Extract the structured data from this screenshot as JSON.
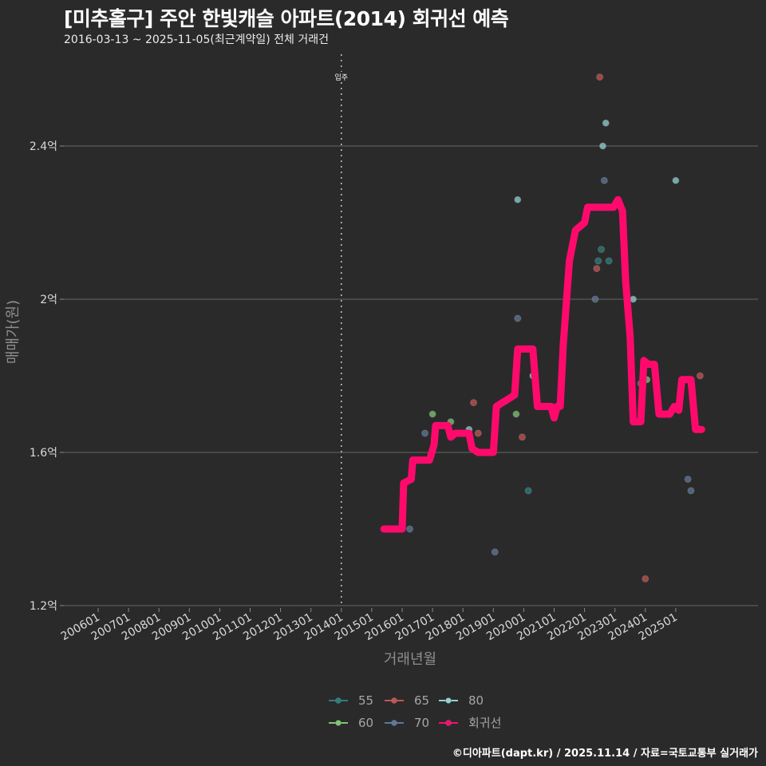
{
  "header": {
    "title": "[미추홀구] 주안 한빛캐슬 아파트(2014) 회귀선 예측",
    "subtitle": "2016-03-13 ~ 2025-11-05(최근계약일) 전체 거래건"
  },
  "footer": {
    "credit": "©디아파트(dapt.kr) / 2025.11.14 / 자료=국토교통부 실거래가"
  },
  "annotation": {
    "label": "입주",
    "x": "201401"
  },
  "colors": {
    "background": "#2a2a2b",
    "grid": "#5a5a5a",
    "s55": "#2a7f7f",
    "s60": "#7ec86f",
    "s65": "#c9534f",
    "s70": "#5e7899",
    "s80": "#8fd3d3",
    "regression": "#ff0a6c"
  },
  "chart_data": {
    "type": "scatter+line",
    "title": "[미추홀구] 주안 한빛캐슬 아파트(2014) 회귀선 예측",
    "subtitle": "2016-03-13 ~ 2025-11-05(최근계약일) 전체 거래건",
    "xlabel": "거래년월",
    "ylabel": "매매가(원)",
    "x_ticks": [
      "200601",
      "200701",
      "200801",
      "200901",
      "201001",
      "201101",
      "201201",
      "201301",
      "201401",
      "201501",
      "201601",
      "201701",
      "201801",
      "201901",
      "202001",
      "202101",
      "202201",
      "202301",
      "202401",
      "202501"
    ],
    "y_ticks": [
      "1.2억",
      "1.6억",
      "2억",
      "2.4억"
    ],
    "ylim": [
      1.2,
      2.6
    ],
    "grid": true,
    "legend_position": "bottom",
    "legend": [
      "55",
      "60",
      "65",
      "70",
      "80",
      "회귀선"
    ],
    "series": [
      {
        "name": "55",
        "points": [
          [
            2020.15,
            1.5
          ],
          [
            2022.55,
            2.13
          ],
          [
            2022.45,
            2.1
          ],
          [
            2022.8,
            2.1
          ]
        ]
      },
      {
        "name": "60",
        "points": [
          [
            2017.0,
            1.7
          ],
          [
            2017.6,
            1.68
          ],
          [
            2019.75,
            1.7
          ],
          [
            2024.05,
            1.79
          ]
        ]
      },
      {
        "name": "65",
        "points": [
          [
            2018.35,
            1.73
          ],
          [
            2018.5,
            1.65
          ],
          [
            2019.95,
            1.64
          ],
          [
            2022.4,
            2.08
          ],
          [
            2022.5,
            2.58
          ],
          [
            2024.0,
            1.27
          ],
          [
            2025.8,
            1.8
          ]
        ]
      },
      {
        "name": "70",
        "points": [
          [
            2016.25,
            1.4
          ],
          [
            2016.75,
            1.65
          ],
          [
            2019.05,
            1.34
          ],
          [
            2019.8,
            1.95
          ],
          [
            2022.35,
            2.0
          ],
          [
            2022.65,
            2.31
          ],
          [
            2025.4,
            1.53
          ],
          [
            2025.5,
            1.5
          ],
          [
            2023.85,
            1.78
          ]
        ]
      },
      {
        "name": "80",
        "points": [
          [
            2018.2,
            1.66
          ],
          [
            2019.8,
            2.26
          ],
          [
            2020.3,
            1.8
          ],
          [
            2022.6,
            2.4
          ],
          [
            2022.7,
            2.46
          ],
          [
            2023.6,
            2.0
          ],
          [
            2025.0,
            2.31
          ]
        ]
      },
      {
        "name": "회귀선",
        "points": [
          [
            2015.4,
            1.4
          ],
          [
            2016.0,
            1.4
          ],
          [
            2016.05,
            1.52
          ],
          [
            2016.3,
            1.53
          ],
          [
            2016.35,
            1.58
          ],
          [
            2016.9,
            1.58
          ],
          [
            2017.05,
            1.62
          ],
          [
            2017.1,
            1.67
          ],
          [
            2017.5,
            1.67
          ],
          [
            2017.6,
            1.64
          ],
          [
            2017.75,
            1.65
          ],
          [
            2018.2,
            1.65
          ],
          [
            2018.3,
            1.61
          ],
          [
            2018.5,
            1.6
          ],
          [
            2019.0,
            1.6
          ],
          [
            2019.1,
            1.72
          ],
          [
            2019.3,
            1.73
          ],
          [
            2019.5,
            1.74
          ],
          [
            2019.7,
            1.75
          ],
          [
            2019.8,
            1.87
          ],
          [
            2020.3,
            1.87
          ],
          [
            2020.45,
            1.72
          ],
          [
            2020.9,
            1.72
          ],
          [
            2021.0,
            1.69
          ],
          [
            2021.1,
            1.72
          ],
          [
            2021.2,
            1.72
          ],
          [
            2021.3,
            1.88
          ],
          [
            2021.5,
            2.1
          ],
          [
            2021.7,
            2.18
          ],
          [
            2022.0,
            2.2
          ],
          [
            2022.1,
            2.24
          ],
          [
            2022.95,
            2.24
          ],
          [
            2023.1,
            2.26
          ],
          [
            2023.25,
            2.23
          ],
          [
            2023.35,
            2.05
          ],
          [
            2023.5,
            1.9
          ],
          [
            2023.6,
            1.68
          ],
          [
            2023.85,
            1.68
          ],
          [
            2023.95,
            1.84
          ],
          [
            2024.1,
            1.83
          ],
          [
            2024.3,
            1.83
          ],
          [
            2024.45,
            1.7
          ],
          [
            2024.8,
            1.7
          ],
          [
            2024.95,
            1.72
          ],
          [
            2025.1,
            1.71
          ],
          [
            2025.2,
            1.79
          ],
          [
            2025.5,
            1.79
          ],
          [
            2025.65,
            1.66
          ],
          [
            2025.85,
            1.66
          ]
        ]
      }
    ]
  },
  "legend": {
    "items": [
      {
        "label": "55"
      },
      {
        "label": "65"
      },
      {
        "label": "80"
      },
      {
        "label": "60"
      },
      {
        "label": "70"
      },
      {
        "label": "회귀선"
      }
    ]
  },
  "axes": {
    "xlabel": "거래년월",
    "ylabel": "매매가(원)"
  }
}
